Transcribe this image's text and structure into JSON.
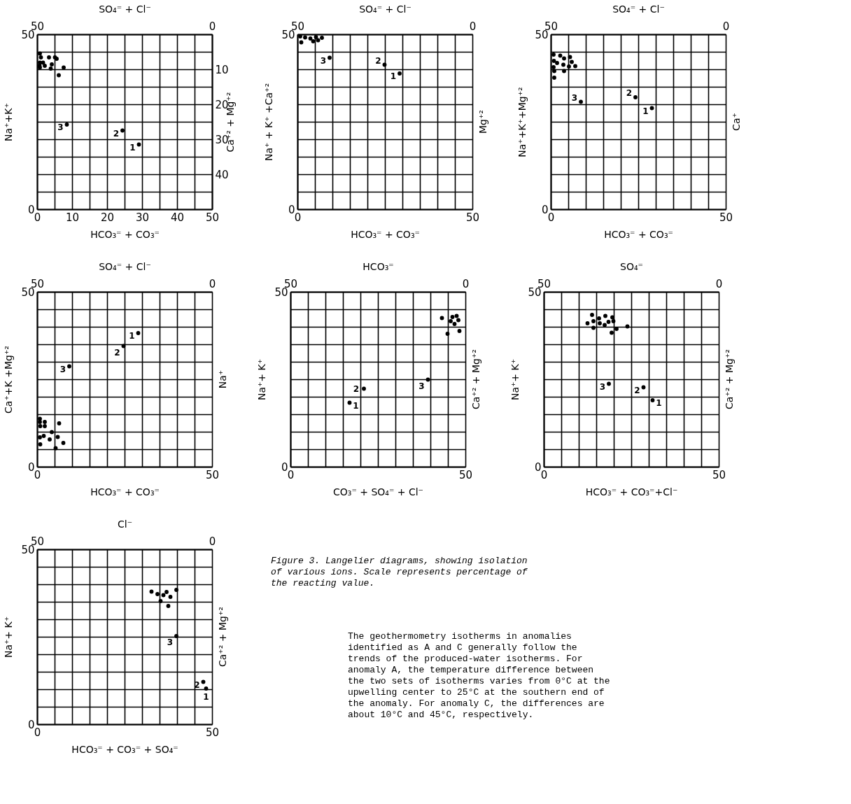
{
  "chart_data": [
    {
      "type": "scatter",
      "xlabel": "HCO₃⁼ + CO₃⁼",
      "x2label": "SO₄⁼ + Cl⁻",
      "ylabel": "Na⁺+K⁺",
      "y2label": "Ca⁺² + Mg⁺²",
      "xlim": [
        0,
        50
      ],
      "x2lim": [
        50,
        0
      ],
      "ylim": [
        0,
        50
      ],
      "y2lim": [
        50,
        0
      ],
      "xticks": [
        0,
        {
          "value": 5,
          "label": null
        },
        10,
        {
          "value": 15,
          "label": null
        },
        20,
        {
          "value": 25,
          "label": null
        },
        30,
        {
          "value": 35,
          "label": null
        },
        40,
        {
          "value": 45,
          "label": null
        },
        50
      ],
      "x2ticks": [
        50,
        0
      ],
      "yticks": [
        0,
        {
          "value": 5,
          "label": null
        },
        {
          "value": 10,
          "label": null
        },
        {
          "value": 15,
          "label": null
        },
        {
          "value": 20,
          "label": null
        },
        {
          "value": 25,
          "label": null
        },
        {
          "value": 30,
          "label": null
        },
        {
          "value": 35,
          "label": null
        },
        {
          "value": 40,
          "label": null
        },
        {
          "value": 45,
          "label": null
        },
        50
      ],
      "y2ticks": [
        10,
        20,
        30,
        40
      ],
      "grid": true,
      "marker": "circle",
      "series": [
        {
          "color": "#000000",
          "x": [
            0.8,
            1.1,
            3.4,
            5.1,
            5.6,
            0.8,
            1.7,
            0.8,
            2.2,
            4.2,
            3.9,
            7.6,
            6.2,
            0.7,
            8.5,
            24.4,
            29.1
          ],
          "values": [
            44.5,
            43.4,
            43.4,
            43.4,
            43,
            41.9,
            41.9,
            40.5,
            41,
            41.4,
            40.2,
            40.5,
            38.3,
            41,
            24.2,
            22.5,
            18.5
          ]
        }
      ],
      "annotations": [
        {
          "text": "3",
          "x": 8.5,
          "y": 24.2
        },
        {
          "text": "2",
          "x": 24.4,
          "y": 22.5
        },
        {
          "text": "1",
          "x": 29.1,
          "y": 18.5
        }
      ]
    },
    {
      "type": "scatter",
      "xlabel": "HCO₃⁼ + CO₃⁼",
      "x2label": "SO₄⁼ + Cl⁻",
      "ylabel": "Na⁺ + K⁺ +Ca⁺²",
      "y2label": "Mg⁺²",
      "xlim": [
        0,
        50
      ],
      "x2lim": [
        50,
        0
      ],
      "ylim": [
        0,
        50
      ],
      "xticks": [
        0,
        {
          "value": 5,
          "label": null
        },
        {
          "value": 10,
          "label": null
        },
        {
          "value": 15,
          "label": null
        },
        {
          "value": 20,
          "label": null
        },
        {
          "value": 25,
          "label": null
        },
        {
          "value": 30,
          "label": null
        },
        {
          "value": 35,
          "label": null
        },
        {
          "value": 40,
          "label": null
        },
        {
          "value": 45,
          "label": null
        },
        50
      ],
      "x2ticks": [
        50,
        0
      ],
      "yticks": [
        0,
        {
          "value": 5,
          "label": null
        },
        {
          "value": 10,
          "label": null
        },
        {
          "value": 15,
          "label": null
        },
        {
          "value": 20,
          "label": null
        },
        {
          "value": 25,
          "label": null
        },
        {
          "value": 30,
          "label": null
        },
        {
          "value": 35,
          "label": null
        },
        {
          "value": 40,
          "label": null
        },
        {
          "value": 45,
          "label": null
        },
        50
      ],
      "grid": true,
      "marker": "circle",
      "series": [
        {
          "color": "#000000",
          "x": [
            0.8,
            2.2,
            3.7,
            5.3,
            7.0,
            1.1,
            4.5,
            5.9,
            9.2,
            24.9,
            29.2
          ],
          "values": [
            49.4,
            49.1,
            48.8,
            49.2,
            49,
            47.7,
            48,
            48.3,
            43.3,
            41.3,
            38.8
          ]
        }
      ],
      "annotations": [
        {
          "text": "3",
          "x": 9.2,
          "y": 43.3
        },
        {
          "text": "2",
          "x": 24.9,
          "y": 41.3
        },
        {
          "text": "1",
          "x": 29.2,
          "y": 38.8
        }
      ]
    },
    {
      "type": "scatter",
      "xlabel": "HCO₃⁼ + CO₃⁼",
      "x2label": "SO₄⁼ + Cl⁻",
      "ylabel": "Na⁺+K⁺+Mg⁺²",
      "y2label": "Ca⁺",
      "xlim": [
        0,
        50
      ],
      "x2lim": [
        50,
        0
      ],
      "ylim": [
        0,
        50
      ],
      "xticks": [
        0,
        {
          "value": 5,
          "label": null
        },
        {
          "value": 10,
          "label": null
        },
        {
          "value": 15,
          "label": null
        },
        {
          "value": 20,
          "label": null
        },
        {
          "value": 25,
          "label": null
        },
        {
          "value": 30,
          "label": null
        },
        {
          "value": 35,
          "label": null
        },
        {
          "value": 40,
          "label": null
        },
        {
          "value": 45,
          "label": null
        },
        50
      ],
      "x2ticks": [
        50,
        0
      ],
      "yticks": [
        0,
        {
          "value": 5,
          "label": null
        },
        {
          "value": 10,
          "label": null
        },
        {
          "value": 15,
          "label": null
        },
        {
          "value": 20,
          "label": null
        },
        {
          "value": 25,
          "label": null
        },
        {
          "value": 30,
          "label": null
        },
        {
          "value": 35,
          "label": null
        },
        {
          "value": 40,
          "label": null
        },
        {
          "value": 45,
          "label": null
        },
        50
      ],
      "grid": true,
      "marker": "circle",
      "series": [
        {
          "color": "#000000",
          "x": [
            0.8,
            0.9,
            0.8,
            1.0,
            2.7,
            3.8,
            5.5,
            6.0,
            3.6,
            5.2,
            7.0,
            3.8,
            1.0,
            1.8,
            8.6,
            24.2,
            28.9
          ],
          "values": [
            44.2,
            42.4,
            40.6,
            39.5,
            43.9,
            43.1,
            43.5,
            42.1,
            41.3,
            40.8,
            40.9,
            39.5,
            37.6,
            41.8,
            30.7,
            32,
            28.9
          ]
        }
      ],
      "annotations": [
        {
          "text": "3",
          "x": 8.6,
          "y": 30.7
        },
        {
          "text": "2",
          "x": 24.2,
          "y": 32
        },
        {
          "text": "1",
          "x": 28.9,
          "y": 28.9
        }
      ]
    },
    {
      "type": "scatter",
      "xlabel": "HCO₃⁼ + CO₃⁼",
      "x2label": "SO₄⁼ + Cl⁻",
      "ylabel": "Ca⁺+K  +Mg⁺²",
      "y2label": "Na⁺",
      "xlim": [
        0,
        50
      ],
      "x2lim": [
        50,
        0
      ],
      "ylim": [
        0,
        50
      ],
      "xticks": [
        0,
        {
          "value": 5,
          "label": null
        },
        {
          "value": 10,
          "label": null
        },
        {
          "value": 15,
          "label": null
        },
        {
          "value": 20,
          "label": null
        },
        {
          "value": 25,
          "label": null
        },
        {
          "value": 30,
          "label": null
        },
        {
          "value": 35,
          "label": null
        },
        {
          "value": 40,
          "label": null
        },
        {
          "value": 45,
          "label": null
        },
        50
      ],
      "x2ticks": [
        50,
        0
      ],
      "yticks": [
        0,
        {
          "value": 5,
          "label": null
        },
        {
          "value": 10,
          "label": null
        },
        {
          "value": 15,
          "label": null
        },
        {
          "value": 20,
          "label": null
        },
        {
          "value": 25,
          "label": null
        },
        {
          "value": 30,
          "label": null
        },
        {
          "value": 35,
          "label": null
        },
        {
          "value": 40,
          "label": null
        },
        {
          "value": 45,
          "label": null
        },
        50
      ],
      "grid": true,
      "marker": "circle",
      "series": [
        {
          "color": "#000000",
          "x": [
            0.8,
            0.8,
            2.2,
            0.9,
            2.2,
            6.3,
            4.2,
            1.9,
            3.6,
            0.8,
            5.9,
            0.9,
            7.5,
            5.3,
            28.9,
            24.7,
            9.2
          ],
          "values": [
            13.7,
            12.8,
            12.8,
            11.6,
            11.6,
            12.4,
            9.9,
            8.8,
            7.8,
            8.4,
            8.5,
            6.4,
            6.8,
            5.3,
            38.2,
            34.5,
            28.7
          ]
        }
      ],
      "annotations": [
        {
          "text": "1",
          "x": 28.9,
          "y": 38.2
        },
        {
          "text": "2",
          "x": 24.7,
          "y": 34.5
        },
        {
          "text": "3",
          "x": 9.2,
          "y": 28.7
        }
      ]
    },
    {
      "type": "scatter",
      "xlabel": "CO₃⁼ + SO₄⁼ + Cl⁻",
      "x2label": "HCO₃⁼",
      "ylabel": "Na⁺+ K⁺",
      "y2label": "Ca⁺² + Mg⁺²",
      "xlim": [
        0,
        50
      ],
      "x2lim": [
        50,
        0
      ],
      "ylim": [
        0,
        50
      ],
      "xticks": [
        0,
        {
          "value": 5,
          "label": null
        },
        {
          "value": 10,
          "label": null
        },
        {
          "value": 15,
          "label": null
        },
        {
          "value": 20,
          "label": null
        },
        {
          "value": 25,
          "label": null
        },
        {
          "value": 30,
          "label": null
        },
        {
          "value": 35,
          "label": null
        },
        {
          "value": 40,
          "label": null
        },
        {
          "value": 45,
          "label": null
        },
        50
      ],
      "x2ticks": [
        50,
        0
      ],
      "yticks": [
        0,
        {
          "value": 5,
          "label": null
        },
        {
          "value": 10,
          "label": null
        },
        {
          "value": 15,
          "label": null
        },
        {
          "value": 20,
          "label": null
        },
        {
          "value": 25,
          "label": null
        },
        {
          "value": 30,
          "label": null
        },
        {
          "value": 35,
          "label": null
        },
        {
          "value": 40,
          "label": null
        },
        {
          "value": 45,
          "label": null
        },
        50
      ],
      "grid": true,
      "marker": "circle",
      "series": [
        {
          "color": "#000000",
          "x": [
            43.3,
            46.3,
            47.5,
            48.0,
            46.9,
            45.8,
            44.9,
            48.3,
            39.3,
            21,
            16.9
          ],
          "values": [
            42.5,
            42.8,
            43.1,
            41.9,
            40.8,
            41.6,
            38,
            38.8,
            24.9,
            22.3,
            18.3
          ]
        }
      ],
      "annotations": [
        {
          "text": "3",
          "x": 39.3,
          "y": 24.9
        },
        {
          "text": "2",
          "x": 21,
          "y": 22.3
        },
        {
          "text": "1",
          "x": 16.9,
          "y": 18.3
        }
      ]
    },
    {
      "type": "scatter",
      "xlabel": "HCO₃⁼ + CO₃⁼+Cl⁻",
      "x2label": "SO₄⁼",
      "ylabel": "Na⁺+ K⁺",
      "y2label": "Ca⁺² + Mg⁺²",
      "xlim": [
        0,
        50
      ],
      "x2lim": [
        50,
        0
      ],
      "ylim": [
        0,
        50
      ],
      "xticks": [
        0,
        {
          "value": 5,
          "label": null
        },
        {
          "value": 10,
          "label": null
        },
        {
          "value": 15,
          "label": null
        },
        {
          "value": 20,
          "label": null
        },
        {
          "value": 25,
          "label": null
        },
        {
          "value": 30,
          "label": null
        },
        {
          "value": 35,
          "label": null
        },
        {
          "value": 40,
          "label": null
        },
        {
          "value": 45,
          "label": null
        },
        50
      ],
      "x2ticks": [
        50,
        0
      ],
      "yticks": [
        0,
        {
          "value": 5,
          "label": null
        },
        {
          "value": 10,
          "label": null
        },
        {
          "value": 15,
          "label": null
        },
        {
          "value": 20,
          "label": null
        },
        {
          "value": 25,
          "label": null
        },
        {
          "value": 30,
          "label": null
        },
        {
          "value": 35,
          "label": null
        },
        {
          "value": 40,
          "label": null
        },
        {
          "value": 45,
          "label": null
        },
        50
      ],
      "grid": true,
      "marker": "circle",
      "series": [
        {
          "color": "#000000",
          "x": [
            12.5,
            13.8,
            14.2,
            15.8,
            17.6,
            16,
            17.4,
            19.6,
            19.9,
            14.2,
            19.4,
            20.8,
            23.9,
            18.5,
            18.6,
            28.5,
            31.1
          ],
          "values": [
            41,
            43.4,
            41.6,
            42.4,
            43.1,
            41,
            40.5,
            42.7,
            41.6,
            39.7,
            38.3,
            39.4,
            40.1,
            41.4,
            23.7,
            22.7,
            19
          ]
        }
      ],
      "annotations": [
        {
          "text": "3",
          "x": 18.6,
          "y": 23.7
        },
        {
          "text": "2",
          "x": 28.5,
          "y": 22.7
        },
        {
          "text": "1",
          "x": 31.1,
          "y": 19
        }
      ]
    },
    {
      "type": "scatter",
      "xlabel": "HCO₃⁼ + CO₃⁼ + SO₄⁼",
      "x2label": "Cl⁻",
      "ylabel": "Na⁺+ K⁺",
      "y2label": "Ca⁺² + Mg⁺²",
      "xlim": [
        0,
        50
      ],
      "x2lim": [
        50,
        0
      ],
      "ylim": [
        0,
        50
      ],
      "xticks": [
        0,
        {
          "value": 5,
          "label": null
        },
        {
          "value": 10,
          "label": null
        },
        {
          "value": 15,
          "label": null
        },
        {
          "value": 20,
          "label": null
        },
        {
          "value": 25,
          "label": null
        },
        {
          "value": 30,
          "label": null
        },
        {
          "value": 35,
          "label": null
        },
        {
          "value": 40,
          "label": null
        },
        {
          "value": 45,
          "label": null
        },
        50
      ],
      "x2ticks": [
        50,
        0
      ],
      "yticks": [
        0,
        {
          "value": 5,
          "label": null
        },
        {
          "value": 10,
          "label": null
        },
        {
          "value": 15,
          "label": null
        },
        {
          "value": 20,
          "label": null
        },
        {
          "value": 25,
          "label": null
        },
        {
          "value": 30,
          "label": null
        },
        {
          "value": 35,
          "label": null
        },
        {
          "value": 40,
          "label": null
        },
        {
          "value": 45,
          "label": null
        },
        50
      ],
      "grid": true,
      "marker": "circle",
      "series": [
        {
          "color": "#000000",
          "x": [
            32.7,
            34.4,
            37,
            39.8,
            38.1,
            35.3,
            37.5,
            36.1,
            39.8,
            47.5,
            48.3
          ],
          "values": [
            37.9,
            37.2,
            37.8,
            38.4,
            36.4,
            35.2,
            33.8,
            36.9,
            25.2,
            12.1,
            10.2
          ]
        }
      ],
      "annotations": [
        {
          "text": "3",
          "x": 39.8,
          "y": 25.2
        },
        {
          "text": "2",
          "x": 47.5,
          "y": 12.1
        },
        {
          "text": "1",
          "x": 48.3,
          "y": 10.2
        },
        "Figure 3.  Langelier diagrams, showing isolation of various ions.  Scale represents percentage of the reacting value.",
        "The geothermometry isotherms in anomalies identified as A and C generally follow the trends of the produced-water isotherms.  For anomaly A, the temperature difference between the two sets of isotherms varies from 0°C at the upwelling center to 25°C at the southern end of the anomaly.  For anomaly C, the differences are about 10°C and 45°C, respectively."
      ]
    }
  ]
}
